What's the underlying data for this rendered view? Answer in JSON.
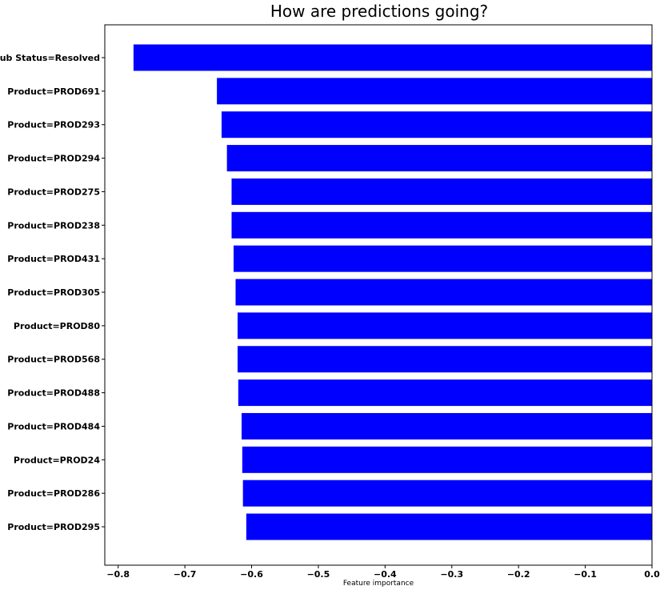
{
  "chart_data": {
    "type": "bar",
    "orientation": "horizontal",
    "title": "How are predictions going?",
    "xlabel": "Feature importance",
    "ylabel": "",
    "xlim": [
      -0.82,
      0.0
    ],
    "xticks": [
      -0.8,
      -0.7,
      -0.6,
      -0.5,
      -0.4,
      -0.3,
      -0.2,
      -0.1,
      0.0
    ],
    "xtick_labels": [
      "−0.8",
      "−0.7",
      "−0.6",
      "−0.5",
      "−0.4",
      "−0.3",
      "−0.2",
      "−0.1",
      "0.0"
    ],
    "bar_color": "#0000ff",
    "grid": false,
    "categories": [
      "Sub Status=Resolved",
      "Product=PROD691",
      "Product=PROD293",
      "Product=PROD294",
      "Product=PROD275",
      "Product=PROD238",
      "Product=PROD431",
      "Product=PROD305",
      "Product=PROD80",
      "Product=PROD568",
      "Product=PROD488",
      "Product=PROD484",
      "Product=PROD24",
      "Product=PROD286",
      "Product=PROD295"
    ],
    "values": [
      -0.777,
      -0.652,
      -0.645,
      -0.637,
      -0.63,
      -0.63,
      -0.627,
      -0.624,
      -0.621,
      -0.621,
      -0.62,
      -0.615,
      -0.614,
      -0.613,
      -0.608
    ]
  }
}
